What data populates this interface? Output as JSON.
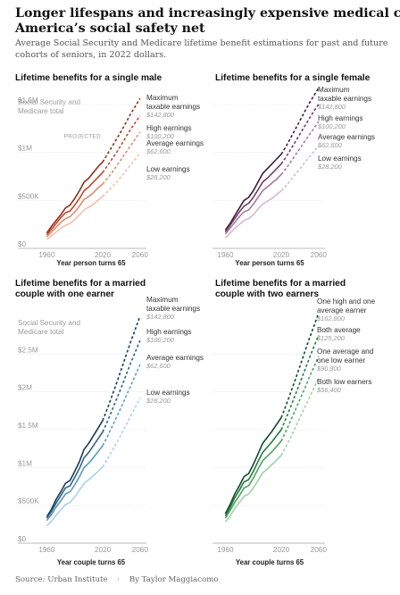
{
  "header": {
    "headline": "Longer lifespans and increasingly expensive medical care strain America’s social safety net",
    "subhead": "Average Social Security and Medicare lifetime benefit estimations for past and future cohorts of seniors, in 2022 dollars."
  },
  "footer": {
    "source": "Source: Urban Institute",
    "separator": "·",
    "byline": "By Taylor Maggiacomo"
  },
  "colors": {
    "male": [
      "#8b2f1b",
      "#c2452b",
      "#e68a68",
      "#f4c0a8"
    ],
    "female": [
      "#3e1d33",
      "#6e3f63",
      "#a47b99",
      "#d6b9cf"
    ],
    "one_earner": [
      "#1b3a55",
      "#2e6489",
      "#5b9ac4",
      "#a8d2ee"
    ],
    "two_earners": [
      "#0f4a2a",
      "#237a3c",
      "#4fa35e",
      "#9fd0a6"
    ],
    "axis_text": "#999999",
    "gridline": "#e6e6e6"
  },
  "chart_data": [
    {
      "type": "line",
      "title": "Lifetime benefits for a single male",
      "ylabel": "Social Security and Medicare total",
      "xlabel": "Year person turns 65",
      "annotation": "PROJECTED",
      "xlim": [
        1950,
        2065
      ],
      "ylim": [
        0,
        1600000
      ],
      "x_ticks": [
        "1960",
        "2020",
        "2060"
      ],
      "y_ticks": [
        {
          "value": 0,
          "label": "$0"
        },
        {
          "value": 500000,
          "label": "$500K"
        },
        {
          "value": 1000000,
          "label": "$1M"
        },
        {
          "value": 1500000,
          "label": "$1.5M"
        }
      ],
      "projected_from": 2020,
      "x": [
        1960,
        1965,
        1970,
        1975,
        1980,
        1985,
        1990,
        1995,
        2000,
        2005,
        2010,
        2015,
        2020,
        2025,
        2030,
        2035,
        2040,
        2045,
        2050,
        2055,
        2060
      ],
      "series": [
        {
          "name": "Maximum taxable earnings",
          "value_label": "$142,800",
          "values": [
            160000,
            230000,
            290000,
            350000,
            420000,
            450000,
            520000,
            600000,
            690000,
            730000,
            790000,
            850000,
            900000,
            980000,
            1060000,
            1140000,
            1220000,
            1310000,
            1400000,
            1480000,
            1560000
          ]
        },
        {
          "name": "High earnings",
          "value_label": "$100,200",
          "values": [
            140000,
            200000,
            260000,
            320000,
            370000,
            390000,
            450000,
            520000,
            600000,
            640000,
            690000,
            740000,
            790000,
            860000,
            930000,
            1000000,
            1080000,
            1160000,
            1240000,
            1310000,
            1380000
          ]
        },
        {
          "name": "Average earnings",
          "value_label": "$62,600",
          "values": [
            120000,
            170000,
            220000,
            270000,
            310000,
            330000,
            380000,
            440000,
            510000,
            540000,
            580000,
            630000,
            670000,
            730000,
            790000,
            860000,
            930000,
            1000000,
            1070000,
            1140000,
            1210000
          ]
        },
        {
          "name": "Low earnings",
          "value_label": "$28,200",
          "values": [
            90000,
            130000,
            170000,
            210000,
            240000,
            260000,
            300000,
            350000,
            400000,
            430000,
            460000,
            500000,
            540000,
            590000,
            640000,
            690000,
            750000,
            810000,
            870000,
            930000,
            990000
          ]
        }
      ]
    },
    {
      "type": "line",
      "title": "Lifetime benefits for a single female",
      "ylabel": "",
      "xlabel": "Year person turns 65",
      "xlim": [
        1950,
        2065
      ],
      "ylim": [
        0,
        1600000
      ],
      "x_ticks": [
        "1960",
        "2020",
        "2060"
      ],
      "y_ticks": [
        {
          "value": 0,
          "label": ""
        },
        {
          "value": 500000,
          "label": ""
        },
        {
          "value": 1000000,
          "label": ""
        },
        {
          "value": 1500000,
          "label": ""
        }
      ],
      "projected_from": 2020,
      "x": [
        1960,
        1965,
        1970,
        1975,
        1980,
        1985,
        1990,
        1995,
        2000,
        2005,
        2010,
        2015,
        2020,
        2025,
        2030,
        2035,
        2040,
        2045,
        2050,
        2055,
        2060
      ],
      "series": [
        {
          "name": "Maximum taxable earnings",
          "value_label": "$142,800",
          "values": [
            190000,
            260000,
            340000,
            420000,
            500000,
            530000,
            600000,
            690000,
            780000,
            830000,
            880000,
            930000,
            980000,
            1060000,
            1150000,
            1240000,
            1330000,
            1420000,
            1510000,
            1590000,
            1670000
          ]
        },
        {
          "name": "High earnings",
          "value_label": "$100,200",
          "values": [
            170000,
            240000,
            310000,
            380000,
            440000,
            470000,
            530000,
            610000,
            690000,
            730000,
            780000,
            830000,
            880000,
            950000,
            1030000,
            1110000,
            1190000,
            1270000,
            1350000,
            1430000,
            1500000
          ]
        },
        {
          "name": "Average earnings",
          "value_label": "$62,600",
          "values": [
            150000,
            210000,
            270000,
            330000,
            380000,
            400000,
            460000,
            530000,
            600000,
            640000,
            680000,
            720000,
            770000,
            830000,
            900000,
            970000,
            1040000,
            1110000,
            1180000,
            1250000,
            1320000
          ]
        },
        {
          "name": "Low earnings",
          "value_label": "$28,200",
          "values": [
            110000,
            160000,
            210000,
            250000,
            290000,
            310000,
            350000,
            410000,
            460000,
            490000,
            520000,
            560000,
            600000,
            650000,
            710000,
            770000,
            830000,
            890000,
            950000,
            1010000,
            1070000
          ]
        }
      ]
    },
    {
      "type": "line",
      "title": "Lifetime benefits for a married couple with one earner",
      "ylabel": "Social Security and Medicare total",
      "xlabel": "Year couple turns 65",
      "xlim": [
        1950,
        2065
      ],
      "ylim": [
        0,
        3000000
      ],
      "x_ticks": [
        "1960",
        "2020",
        "2060"
      ],
      "y_ticks": [
        {
          "value": 0,
          "label": "$0"
        },
        {
          "value": 500000,
          "label": "$500K"
        },
        {
          "value": 1000000,
          "label": "$1M"
        },
        {
          "value": 1500000,
          "label": "$1.5M"
        },
        {
          "value": 2000000,
          "label": "$2M"
        },
        {
          "value": 2500000,
          "label": "$2.5M"
        }
      ],
      "projected_from": 2020,
      "x": [
        1960,
        1965,
        1970,
        1975,
        1980,
        1985,
        1990,
        1995,
        2000,
        2005,
        2010,
        2015,
        2020,
        2025,
        2030,
        2035,
        2040,
        2045,
        2050,
        2055,
        2060
      ],
      "series": [
        {
          "name": "Maximum taxable earnings",
          "value_label": "$142,800",
          "values": [
            350000,
            450000,
            580000,
            680000,
            790000,
            830000,
            950000,
            1080000,
            1240000,
            1320000,
            1420000,
            1520000,
            1620000,
            1780000,
            1950000,
            2120000,
            2300000,
            2480000,
            2660000,
            2830000,
            3000000
          ]
        },
        {
          "name": "High earnings",
          "value_label": "$100,200",
          "values": [
            330000,
            420000,
            530000,
            630000,
            730000,
            760000,
            870000,
            990000,
            1130000,
            1200000,
            1290000,
            1380000,
            1470000,
            1610000,
            1760000,
            1910000,
            2060000,
            2220000,
            2380000,
            2530000,
            2680000
          ]
        },
        {
          "name": "Average earnings",
          "value_label": "$62,600",
          "values": [
            300000,
            380000,
            480000,
            560000,
            650000,
            680000,
            770000,
            880000,
            1000000,
            1060000,
            1130000,
            1210000,
            1290000,
            1410000,
            1540000,
            1670000,
            1800000,
            1940000,
            2080000,
            2220000,
            2360000
          ]
        },
        {
          "name": "Low earnings",
          "value_label": "$28,200",
          "values": [
            230000,
            290000,
            370000,
            440000,
            510000,
            540000,
            610000,
            700000,
            790000,
            840000,
            890000,
            950000,
            1010000,
            1110000,
            1220000,
            1330000,
            1440000,
            1560000,
            1680000,
            1800000,
            1920000
          ]
        }
      ]
    },
    {
      "type": "line",
      "title": "Lifetime benefits for a married couple with two earners",
      "ylabel": "",
      "xlabel": "Year couple turns 65",
      "xlim": [
        1950,
        2065
      ],
      "ylim": [
        0,
        3000000
      ],
      "x_ticks": [
        "1960",
        "2020",
        "2060"
      ],
      "y_ticks": [
        {
          "value": 0,
          "label": ""
        },
        {
          "value": 500000,
          "label": ""
        },
        {
          "value": 1000000,
          "label": ""
        },
        {
          "value": 1500000,
          "label": ""
        },
        {
          "value": 2000000,
          "label": ""
        },
        {
          "value": 2500000,
          "label": ""
        }
      ],
      "projected_from": 2020,
      "x": [
        1960,
        1965,
        1970,
        1975,
        1980,
        1985,
        1990,
        1995,
        2000,
        2005,
        2010,
        2015,
        2020,
        2025,
        2030,
        2035,
        2040,
        2045,
        2050,
        2055,
        2060
      ],
      "series": [
        {
          "name": "One high and one average earner",
          "value_label": "$162,800",
          "values": [
            390000,
            510000,
            650000,
            760000,
            880000,
            920000,
            1040000,
            1180000,
            1320000,
            1400000,
            1480000,
            1570000,
            1660000,
            1820000,
            1990000,
            2160000,
            2340000,
            2520000,
            2700000,
            2870000,
            3040000
          ]
        },
        {
          "name": "Both average",
          "value_label": "$125,200",
          "values": [
            360000,
            470000,
            600000,
            700000,
            810000,
            840000,
            950000,
            1080000,
            1200000,
            1270000,
            1340000,
            1420000,
            1500000,
            1650000,
            1800000,
            1960000,
            2120000,
            2280000,
            2440000,
            2600000,
            2750000
          ]
        },
        {
          "name": "One average and one low earner",
          "value_label": "$90,800",
          "values": [
            330000,
            430000,
            540000,
            630000,
            730000,
            760000,
            860000,
            980000,
            1090000,
            1150000,
            1210000,
            1280000,
            1350000,
            1480000,
            1620000,
            1760000,
            1900000,
            2040000,
            2190000,
            2330000,
            2470000
          ]
        },
        {
          "name": "Both low earners",
          "value_label": "$56,400",
          "values": [
            280000,
            360000,
            460000,
            540000,
            620000,
            650000,
            730000,
            830000,
            930000,
            980000,
            1040000,
            1100000,
            1160000,
            1280000,
            1400000,
            1530000,
            1660000,
            1790000,
            1920000,
            2050000,
            2180000
          ]
        }
      ]
    }
  ]
}
